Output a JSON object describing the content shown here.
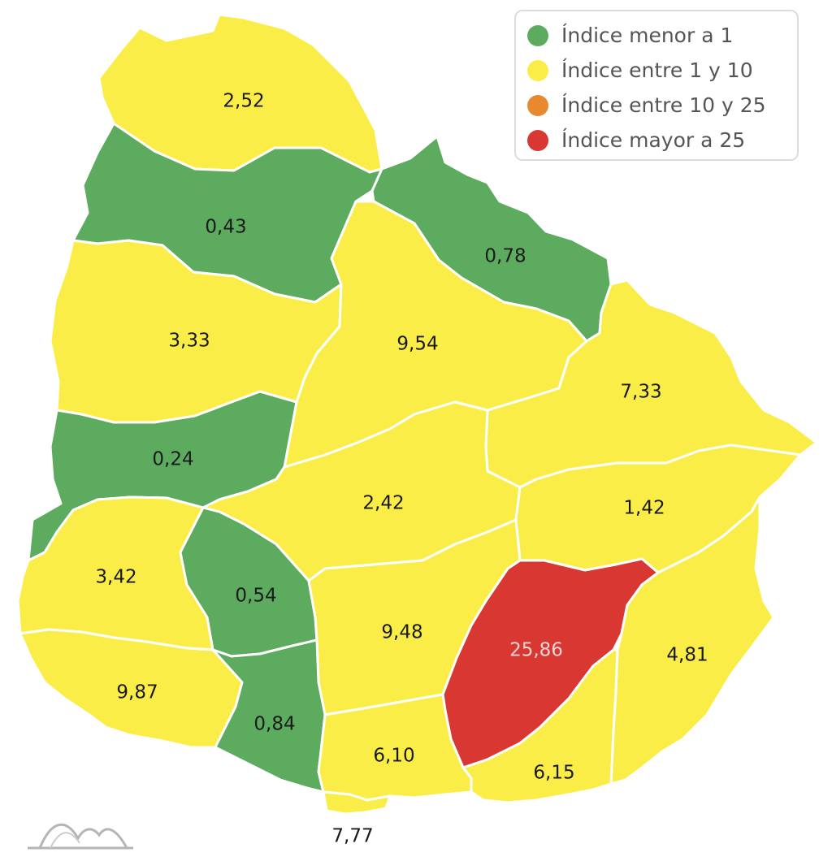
{
  "colors": {
    "green": "#5cab5f",
    "yellow": "#fbed48",
    "orange": "#e8892f",
    "red": "#d93732",
    "border": "#ffffff",
    "label_dark": "#1a1a1a",
    "label_light": "#f2d5d2"
  },
  "legend": [
    {
      "label": "Índice menor a 1",
      "color": "#5cab5f"
    },
    {
      "label": "Índice entre 1 y 10",
      "color": "#fbed48"
    },
    {
      "label": "Índice entre 10 y 25",
      "color": "#e8892f"
    },
    {
      "label": "Índice mayor a 25",
      "color": "#d93732"
    }
  ],
  "regions": [
    {
      "value": "2,52",
      "index": 2.52,
      "category": "yellow"
    },
    {
      "value": "0,43",
      "index": 0.43,
      "category": "green"
    },
    {
      "value": "0,78",
      "index": 0.78,
      "category": "green"
    },
    {
      "value": "3,33",
      "index": 3.33,
      "category": "yellow"
    },
    {
      "value": "9,54",
      "index": 9.54,
      "category": "yellow"
    },
    {
      "value": "7,33",
      "index": 7.33,
      "category": "yellow"
    },
    {
      "value": "0,24",
      "index": 0.24,
      "category": "green"
    },
    {
      "value": "2,42",
      "index": 2.42,
      "category": "yellow"
    },
    {
      "value": "1,42",
      "index": 1.42,
      "category": "yellow"
    },
    {
      "value": "3,42",
      "index": 3.42,
      "category": "yellow"
    },
    {
      "value": "0,54",
      "index": 0.54,
      "category": "green"
    },
    {
      "value": "9,48",
      "index": 9.48,
      "category": "yellow"
    },
    {
      "value": "25,86",
      "index": 25.86,
      "category": "red"
    },
    {
      "value": "4,81",
      "index": 4.81,
      "category": "yellow"
    },
    {
      "value": "9,87",
      "index": 9.87,
      "category": "yellow"
    },
    {
      "value": "0,84",
      "index": 0.84,
      "category": "green"
    },
    {
      "value": "6,10",
      "index": 6.1,
      "category": "yellow"
    },
    {
      "value": "6,15",
      "index": 6.15,
      "category": "yellow"
    },
    {
      "value": "7,77",
      "index": 7.77,
      "category": "yellow"
    }
  ],
  "watermark_icon": "mountain-logo-icon"
}
